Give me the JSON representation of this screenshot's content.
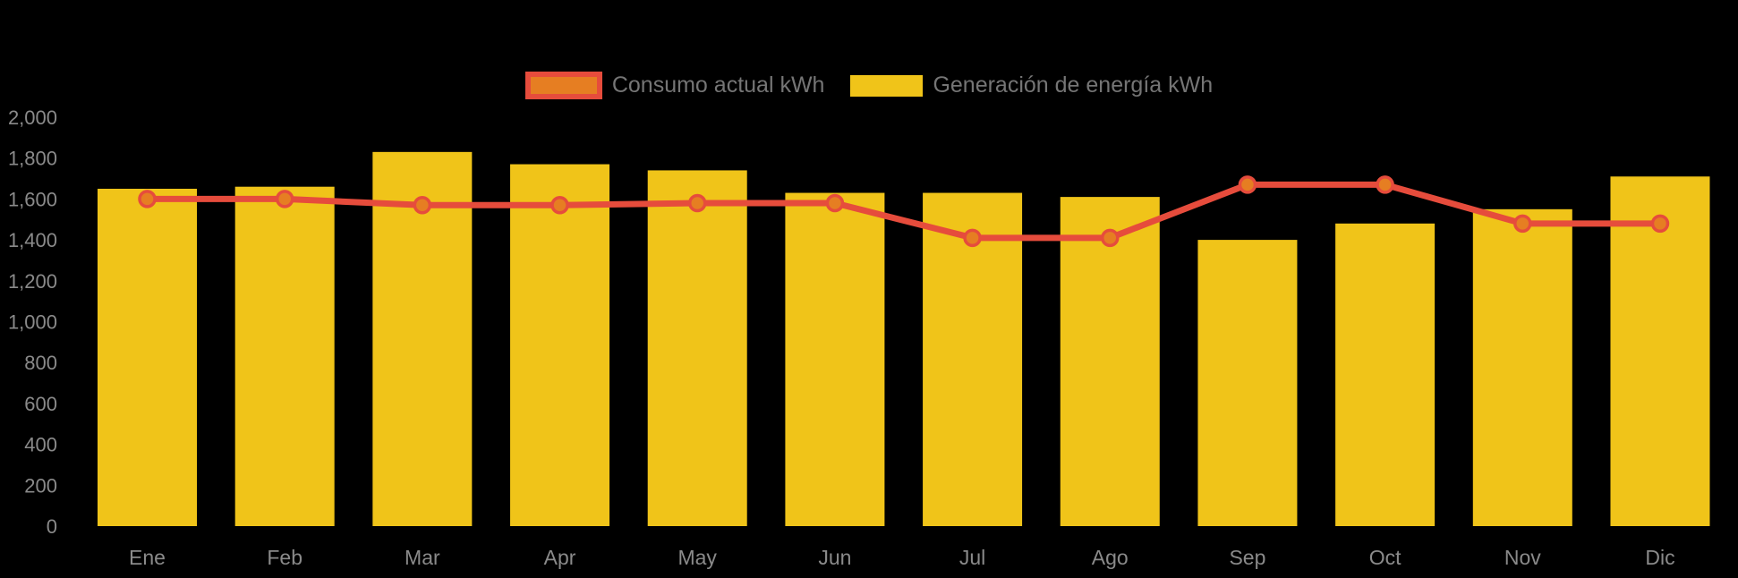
{
  "background": "#000000",
  "colors": {
    "bar": "#F0C419",
    "line": "#E64C3C",
    "marker_fill": "#E67E22",
    "marker_stroke": "#E64C3C",
    "axis_text": "#8A8A8A",
    "legend_text": "#757575",
    "legend_swatch1_fill": "#E67E22",
    "legend_swatch1_border": "#E64C3C",
    "legend_swatch2_fill": "#F0C419"
  },
  "legend": {
    "items": [
      {
        "label": "Consumo actual kWh"
      },
      {
        "label": "Generación de energía kWh"
      }
    ]
  },
  "chart_data": {
    "type": "bar+line",
    "categories": [
      "Ene",
      "Feb",
      "Mar",
      "Apr",
      "May",
      "Jun",
      "Jul",
      "Ago",
      "Sep",
      "Oct",
      "Nov",
      "Dic"
    ],
    "series": [
      {
        "name": "Consumo actual kWh",
        "type": "line",
        "color": "#E64C3C",
        "values": [
          1600,
          1600,
          1570,
          1570,
          1580,
          1580,
          1410,
          1410,
          1670,
          1670,
          1480,
          1480
        ]
      },
      {
        "name": "Generación de energía kWh",
        "type": "bar",
        "color": "#F0C419",
        "values": [
          1650,
          1660,
          1830,
          1770,
          1740,
          1630,
          1630,
          1610,
          1400,
          1480,
          1550,
          1710
        ]
      }
    ],
    "xlabel": "",
    "ylabel": "",
    "ylim": [
      0,
      2000
    ],
    "ytick_values": [
      0,
      200,
      400,
      600,
      800,
      1000,
      1200,
      1400,
      1600,
      1800,
      2000
    ],
    "ytick_labels": [
      "0",
      "200",
      "400",
      "600",
      "800",
      "1,000",
      "1,200",
      "1,400",
      "1,600",
      "1,800",
      "2,000"
    ],
    "grid": false,
    "legend_position": "top-center"
  }
}
